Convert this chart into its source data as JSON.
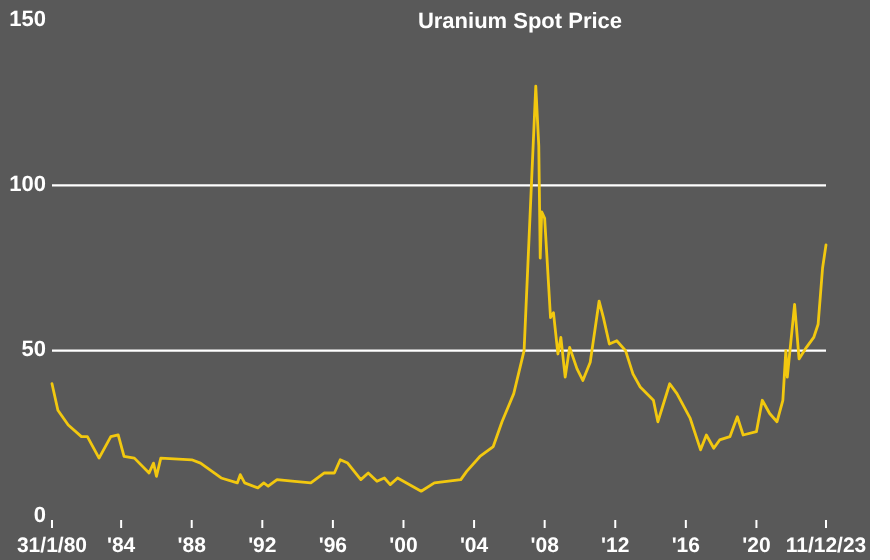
{
  "chart_data": {
    "type": "line",
    "title": "Uranium Spot Price",
    "x": [
      "1980-01-31",
      "1980-06",
      "1981-01",
      "1981-10",
      "1982-02",
      "1982-10",
      "1983-06",
      "1983-11",
      "1984-03",
      "1984-10",
      "1985-08",
      "1985-11",
      "1986-01",
      "1986-04",
      "1988-01",
      "1988-07",
      "1989-09",
      "1990-08",
      "1990-10",
      "1991-01",
      "1991-10",
      "1992-02",
      "1992-05",
      "1992-11",
      "1993-11",
      "1994-10",
      "1995-07",
      "1996-02",
      "1996-06",
      "1996-11",
      "1997-08",
      "1998-01",
      "1998-07",
      "1998-12",
      "1999-04",
      "1999-09",
      "2001-01",
      "2001-10",
      "2003-04",
      "2003-08",
      "2004-05",
      "2005-02",
      "2005-08",
      "2006-04",
      "2006-11",
      "2007-07",
      "2007-09",
      "2007-10",
      "2007-11",
      "2008-01",
      "2008-05",
      "2008-07",
      "2008-10",
      "2008-12",
      "2009-03",
      "2009-06",
      "2009-11",
      "2010-03",
      "2010-08",
      "2011-02",
      "2011-05",
      "2011-09",
      "2012-02",
      "2012-08",
      "2013-01",
      "2013-06",
      "2014-03",
      "2014-06",
      "2015-02",
      "2015-07",
      "2016-04",
      "2016-11",
      "2017-03",
      "2017-08",
      "2017-12",
      "2018-07",
      "2018-12",
      "2019-04",
      "2020-01",
      "2020-05",
      "2020-10",
      "2021-03",
      "2021-07",
      "2021-09",
      "2021-10",
      "2022-03",
      "2022-06",
      "2022-11",
      "2023-04",
      "2023-07",
      "2023-10",
      "2023-12-11"
    ],
    "series": [
      {
        "color": "#f2c80f",
        "values": [
          40,
          32,
          27.5,
          24,
          24,
          17.5,
          24,
          24.5,
          18,
          17.5,
          13,
          16,
          12,
          17.5,
          17,
          16,
          11.5,
          10,
          12.5,
          10,
          8.5,
          10,
          9,
          11,
          10.5,
          10,
          13,
          13,
          17,
          16,
          11,
          13,
          10.5,
          11.5,
          9.5,
          11.5,
          7.5,
          10,
          11,
          13.5,
          18,
          21,
          28.5,
          37,
          50,
          130,
          112,
          78,
          92,
          90,
          60,
          61.5,
          49,
          54,
          42,
          51,
          44.5,
          41,
          46.5,
          65,
          60,
          52,
          53,
          50,
          43,
          39,
          35,
          28.5,
          40,
          37,
          29.5,
          20,
          24.5,
          20.5,
          23,
          24,
          30,
          24.5,
          25.5,
          35,
          31,
          28.5,
          35,
          50,
          42,
          64,
          47.5,
          51,
          54,
          58,
          75,
          82
        ]
      }
    ],
    "xlim": [
      "1980-01-31",
      "2023-12-11"
    ],
    "xticks": [
      {
        "value": "1980-01-31",
        "label": "31/1/80"
      },
      {
        "value": "1984-01-01",
        "label": "'84"
      },
      {
        "value": "1988-01-01",
        "label": "'88"
      },
      {
        "value": "1992-01-01",
        "label": "'92"
      },
      {
        "value": "1996-01-01",
        "label": "'96"
      },
      {
        "value": "2000-01-01",
        "label": "'00"
      },
      {
        "value": "2004-01-01",
        "label": "'04"
      },
      {
        "value": "2008-01-01",
        "label": "'08"
      },
      {
        "value": "2012-01-01",
        "label": "'12"
      },
      {
        "value": "2016-01-01",
        "label": "'16"
      },
      {
        "value": "2020-01-01",
        "label": "'20"
      },
      {
        "value": "2023-12-11",
        "label": "11/12/23"
      }
    ],
    "ylim": [
      0,
      150
    ],
    "yticks": [
      0,
      50,
      100,
      150
    ],
    "grid": "y"
  }
}
